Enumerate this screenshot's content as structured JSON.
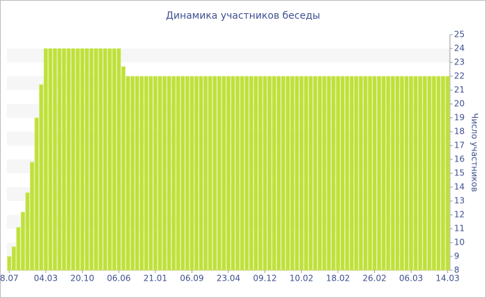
{
  "chart_data": {
    "type": "bar",
    "title": "Динамика участников беседы",
    "y_axis_label": "Число участников",
    "color": "#bfe03a",
    "categories": [
      "8.07",
      null,
      null,
      null,
      null,
      null,
      null,
      null,
      "04.03",
      null,
      null,
      null,
      null,
      null,
      null,
      null,
      "20.10",
      null,
      null,
      null,
      null,
      null,
      null,
      null,
      "06.06",
      null,
      null,
      null,
      null,
      null,
      null,
      null,
      "21.01",
      null,
      null,
      null,
      null,
      null,
      null,
      null,
      "06.09",
      null,
      null,
      null,
      null,
      null,
      null,
      null,
      "23.04",
      null,
      null,
      null,
      null,
      null,
      null,
      null,
      "09.12",
      null,
      null,
      null,
      null,
      null,
      null,
      null,
      "10.02",
      null,
      null,
      null,
      null,
      null,
      null,
      null,
      "18.02",
      null,
      null,
      null,
      null,
      null,
      null,
      null,
      "26.02",
      null,
      null,
      null,
      null,
      null,
      null,
      null,
      "06.03",
      null,
      null,
      null,
      null,
      null,
      null,
      null,
      "14.03"
    ],
    "values": [
      9,
      9.7,
      11.1,
      12.2,
      13.6,
      15.8,
      19,
      21.4,
      24,
      24,
      24,
      24,
      24,
      24,
      24,
      24,
      24,
      24,
      24,
      24,
      24,
      24,
      24,
      24,
      24,
      22.7,
      22,
      22,
      22,
      22,
      22,
      22,
      22,
      22,
      22,
      22,
      22,
      22,
      22,
      22,
      22,
      22,
      22,
      22,
      22,
      22,
      22,
      22,
      22,
      22,
      22,
      22,
      22,
      22,
      22,
      22,
      22,
      22,
      22,
      22,
      22,
      22,
      22,
      22,
      22,
      22,
      22,
      22,
      22,
      22,
      22,
      22,
      22,
      22,
      22,
      22,
      22,
      22,
      22,
      22,
      22,
      22,
      22,
      22,
      22,
      22,
      22,
      22,
      22,
      22,
      22,
      22,
      22,
      22,
      22,
      22,
      22
    ],
    "ylim": [
      8,
      25
    ],
    "yticks": [
      8,
      9,
      10,
      11,
      12,
      13,
      14,
      15,
      16,
      17,
      18,
      19,
      20,
      21,
      22,
      23,
      24,
      25
    ],
    "y_axis_side": "right",
    "striped_grid": true
  }
}
